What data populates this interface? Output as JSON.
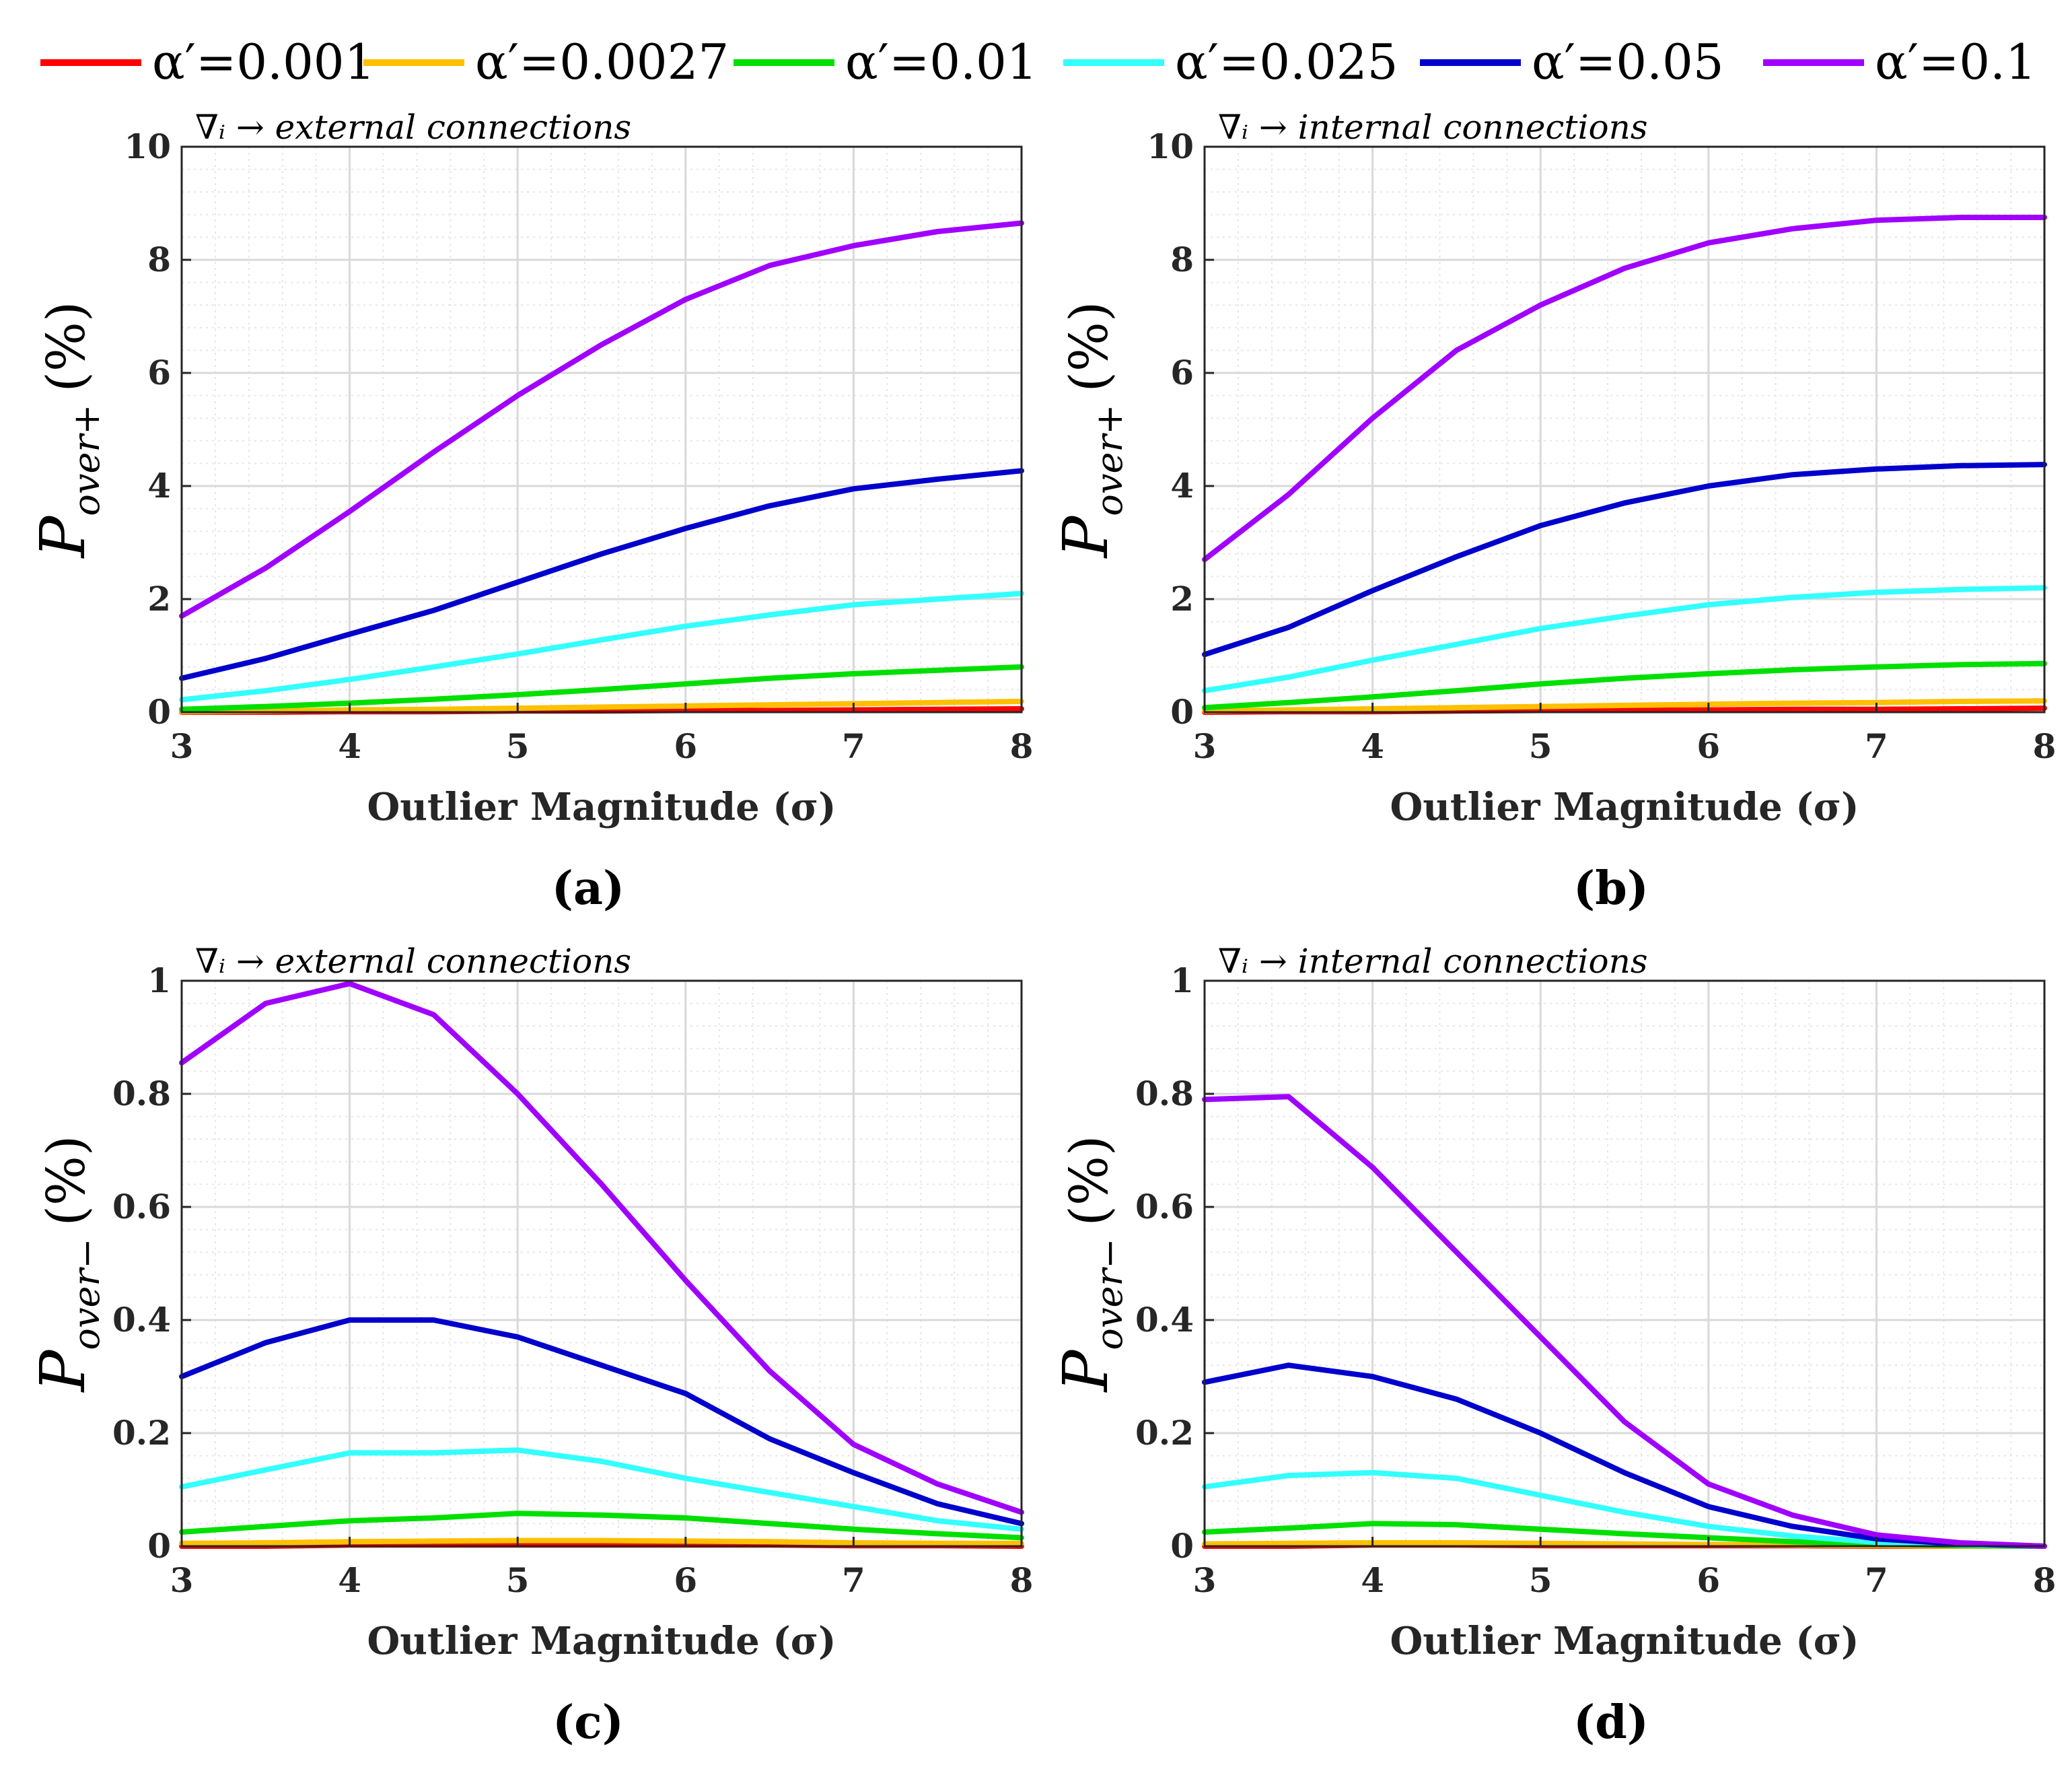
{
  "legend": {
    "items": [
      {
        "label": "α′=0.001",
        "color": "#ff0000"
      },
      {
        "label": "α′=0.0027",
        "color": "#ffc000"
      },
      {
        "label": "α′=0.01",
        "color": "#00e000"
      },
      {
        "label": "α′=0.025",
        "color": "#33ffff"
      },
      {
        "label": "α′=0.05",
        "color": "#0000cc"
      },
      {
        "label": "α′=0.1",
        "color": "#a000ff"
      }
    ]
  },
  "chart_data": [
    {
      "id": "a",
      "type": "line",
      "panel_label": "(a)",
      "subtitle": "∇ᵢ → external connections",
      "xlabel": "Outlier Magnitude (σ)",
      "ylabel_main": "P",
      "ylabel_sub": "over+",
      "ylabel_unit": "(%)",
      "xlim": [
        3,
        8
      ],
      "ylim": [
        0,
        10
      ],
      "xticks": [
        "3",
        "4",
        "5",
        "6",
        "7",
        "8"
      ],
      "yticks": [
        "0",
        "2",
        "4",
        "6",
        "8",
        "10"
      ],
      "x": [
        3.0,
        3.5,
        4.0,
        4.5,
        5.0,
        5.5,
        6.0,
        6.5,
        7.0,
        7.5,
        8.0
      ],
      "series": [
        {
          "name": "α′=0.001",
          "values": [
            0.0,
            0.0,
            0.01,
            0.01,
            0.02,
            0.02,
            0.03,
            0.03,
            0.04,
            0.05,
            0.06
          ]
        },
        {
          "name": "α′=0.0027",
          "values": [
            0.01,
            0.02,
            0.04,
            0.05,
            0.07,
            0.09,
            0.11,
            0.13,
            0.15,
            0.17,
            0.19
          ]
        },
        {
          "name": "α′=0.01",
          "values": [
            0.05,
            0.1,
            0.16,
            0.23,
            0.31,
            0.4,
            0.5,
            0.6,
            0.68,
            0.74,
            0.8
          ]
        },
        {
          "name": "α′=0.025",
          "values": [
            0.22,
            0.38,
            0.58,
            0.8,
            1.03,
            1.28,
            1.52,
            1.72,
            1.9,
            2.0,
            2.1
          ]
        },
        {
          "name": "α′=0.05",
          "values": [
            0.6,
            0.95,
            1.38,
            1.8,
            2.3,
            2.8,
            3.25,
            3.65,
            3.95,
            4.12,
            4.27
          ]
        },
        {
          "name": "α′=0.1",
          "values": [
            1.7,
            2.55,
            3.55,
            4.6,
            5.6,
            6.5,
            7.3,
            7.9,
            8.25,
            8.5,
            8.65
          ]
        }
      ]
    },
    {
      "id": "b",
      "type": "line",
      "panel_label": "(b)",
      "subtitle": "∇ᵢ → internal connections",
      "xlabel": "Outlier Magnitude (σ)",
      "ylabel_main": "P",
      "ylabel_sub": "over+",
      "ylabel_unit": "(%)",
      "xlim": [
        3,
        8
      ],
      "ylim": [
        0,
        10
      ],
      "xticks": [
        "3",
        "4",
        "5",
        "6",
        "7",
        "8"
      ],
      "yticks": [
        "0",
        "2",
        "4",
        "6",
        "8",
        "10"
      ],
      "x": [
        3.0,
        3.5,
        4.0,
        4.5,
        5.0,
        5.5,
        6.0,
        6.5,
        7.0,
        7.5,
        8.0
      ],
      "series": [
        {
          "name": "α′=0.001",
          "values": [
            0.0,
            0.01,
            0.01,
            0.02,
            0.03,
            0.03,
            0.04,
            0.05,
            0.05,
            0.06,
            0.07
          ]
        },
        {
          "name": "α′=0.0027",
          "values": [
            0.02,
            0.04,
            0.06,
            0.08,
            0.1,
            0.12,
            0.14,
            0.16,
            0.17,
            0.19,
            0.2
          ]
        },
        {
          "name": "α′=0.01",
          "values": [
            0.08,
            0.17,
            0.27,
            0.38,
            0.5,
            0.6,
            0.68,
            0.75,
            0.8,
            0.84,
            0.86
          ]
        },
        {
          "name": "α′=0.025",
          "values": [
            0.38,
            0.62,
            0.92,
            1.2,
            1.48,
            1.7,
            1.9,
            2.03,
            2.12,
            2.17,
            2.2
          ]
        },
        {
          "name": "α′=0.05",
          "values": [
            1.02,
            1.5,
            2.15,
            2.75,
            3.3,
            3.7,
            4.0,
            4.2,
            4.3,
            4.36,
            4.38
          ]
        },
        {
          "name": "α′=0.1",
          "values": [
            2.7,
            3.85,
            5.2,
            6.4,
            7.2,
            7.85,
            8.3,
            8.55,
            8.7,
            8.75,
            8.75
          ]
        }
      ]
    },
    {
      "id": "c",
      "type": "line",
      "panel_label": "(c)",
      "subtitle": "∇ᵢ → external connections",
      "xlabel": "Outlier Magnitude (σ)",
      "ylabel_main": "P",
      "ylabel_sub": "over−",
      "ylabel_unit": "(%)",
      "xlim": [
        3,
        8
      ],
      "ylim": [
        0,
        1
      ],
      "xticks": [
        "3",
        "4",
        "5",
        "6",
        "7",
        "8"
      ],
      "yticks": [
        "0",
        "0.2",
        "0.4",
        "0.6",
        "0.8",
        "1"
      ],
      "x": [
        3.0,
        3.5,
        4.0,
        4.5,
        5.0,
        5.5,
        6.0,
        6.5,
        7.0,
        7.5,
        8.0
      ],
      "series": [
        {
          "name": "α′=0.001",
          "values": [
            0.0,
            0.0,
            0.002,
            0.002,
            0.002,
            0.002,
            0.002,
            0.002,
            0.001,
            0.001,
            0.0
          ]
        },
        {
          "name": "α′=0.0027",
          "values": [
            0.005,
            0.006,
            0.008,
            0.009,
            0.01,
            0.01,
            0.009,
            0.008,
            0.006,
            0.005,
            0.005
          ]
        },
        {
          "name": "α′=0.01",
          "values": [
            0.025,
            0.035,
            0.045,
            0.05,
            0.058,
            0.055,
            0.05,
            0.04,
            0.03,
            0.022,
            0.015
          ]
        },
        {
          "name": "α′=0.025",
          "values": [
            0.105,
            0.135,
            0.165,
            0.165,
            0.17,
            0.15,
            0.12,
            0.095,
            0.07,
            0.045,
            0.03
          ]
        },
        {
          "name": "α′=0.05",
          "values": [
            0.3,
            0.36,
            0.4,
            0.4,
            0.37,
            0.32,
            0.27,
            0.19,
            0.13,
            0.075,
            0.04
          ]
        },
        {
          "name": "α′=0.1",
          "values": [
            0.855,
            0.96,
            0.995,
            0.94,
            0.8,
            0.64,
            0.47,
            0.31,
            0.18,
            0.11,
            0.06
          ]
        }
      ]
    },
    {
      "id": "d",
      "type": "line",
      "panel_label": "(d)",
      "subtitle": "∇ᵢ → internal connections",
      "xlabel": "Outlier Magnitude (σ)",
      "ylabel_main": "P",
      "ylabel_sub": "over−",
      "ylabel_unit": "(%)",
      "xlim": [
        3,
        8
      ],
      "ylim": [
        0,
        1
      ],
      "xticks": [
        "3",
        "4",
        "5",
        "6",
        "7",
        "8"
      ],
      "yticks": [
        "0",
        "0.2",
        "0.4",
        "0.6",
        "0.8",
        "1"
      ],
      "x": [
        3.0,
        3.5,
        4.0,
        4.5,
        5.0,
        5.5,
        6.0,
        6.5,
        7.0,
        7.5,
        8.0
      ],
      "series": [
        {
          "name": "α′=0.001",
          "values": [
            0.0,
            0.0,
            0.002,
            0.002,
            0.001,
            0.001,
            0.001,
            0.001,
            0.0,
            0.0,
            0.0
          ]
        },
        {
          "name": "α′=0.0027",
          "values": [
            0.004,
            0.005,
            0.006,
            0.006,
            0.005,
            0.004,
            0.003,
            0.002,
            0.001,
            0.0,
            0.0
          ]
        },
        {
          "name": "α′=0.01",
          "values": [
            0.025,
            0.032,
            0.04,
            0.038,
            0.03,
            0.022,
            0.015,
            0.008,
            0.004,
            0.001,
            0.0
          ]
        },
        {
          "name": "α′=0.025",
          "values": [
            0.105,
            0.125,
            0.13,
            0.12,
            0.09,
            0.06,
            0.035,
            0.018,
            0.007,
            0.002,
            0.0
          ]
        },
        {
          "name": "α′=0.05",
          "values": [
            0.29,
            0.32,
            0.3,
            0.26,
            0.2,
            0.13,
            0.07,
            0.035,
            0.013,
            0.004,
            0.0
          ]
        },
        {
          "name": "α′=0.1",
          "values": [
            0.79,
            0.795,
            0.67,
            0.52,
            0.37,
            0.22,
            0.11,
            0.055,
            0.02,
            0.006,
            0.0
          ]
        }
      ]
    }
  ]
}
